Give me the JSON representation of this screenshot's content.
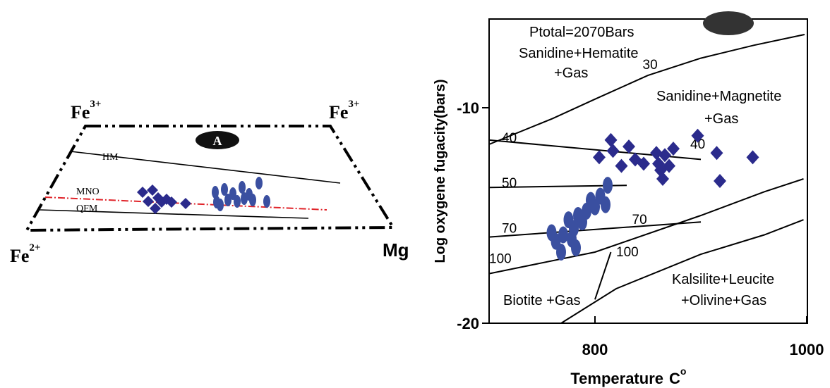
{
  "left_panel": {
    "label_a": "A",
    "vertex_top_left": {
      "base": "Fe",
      "sup": "3+"
    },
    "vertex_top_right": {
      "base": "Fe",
      "sup": "3+"
    },
    "vertex_bottom_left": {
      "base": "Fe",
      "sup": "2+"
    },
    "vertex_bottom_right": "Mg",
    "buffer_labels": {
      "hm": "HM",
      "mno": "MNO",
      "qfm": "QFM"
    },
    "colors": {
      "buffer_mno": "#e0242a",
      "marker": "#2b2b8c",
      "marker_ellipse": "#3a4fa0"
    }
  },
  "chart_data": {
    "type": "scatter",
    "title": "",
    "xlabel": "Temperature",
    "xlabel_unit": {
      "base": "C",
      "sup": "o"
    },
    "ylabel": "Log oxygene fugacity(bars)",
    "xlim": [
      700,
      1000
    ],
    "ylim": [
      -20,
      -6
    ],
    "x_ticks": [
      800,
      1000
    ],
    "y_ticks": [
      -10,
      -20
    ],
    "grid": false,
    "annotations": {
      "ptotal": "Ptotal=2070Bars",
      "field_sanidine_hematite": [
        "Sanidine+Hematite",
        "+Gas"
      ],
      "field_sanidine_magnetite": [
        "Sanidine+Magnetite",
        "+Gas"
      ],
      "field_biotite": "Biotite +Gas",
      "field_kalsilite": [
        "Kalsilite+Leucite",
        "+Olivine+Gas"
      ]
    },
    "buffer_curves": [
      {
        "name": "HM",
        "points": [
          [
            700,
            -11.7
          ],
          [
            760,
            -10.5
          ],
          [
            800,
            -9.6
          ],
          [
            850,
            -8.5
          ],
          [
            900,
            -7.7
          ],
          [
            950,
            -7.1
          ],
          [
            998,
            -6.6
          ]
        ]
      },
      {
        "name": "biotite upper",
        "points": [
          [
            700,
            -17.7
          ],
          [
            800,
            -16.7
          ],
          [
            900,
            -15.0
          ],
          [
            960,
            -13.9
          ],
          [
            997,
            -13.3
          ]
        ]
      },
      {
        "name": "kalsilite",
        "points": [
          [
            768,
            -20.0
          ],
          [
            820,
            -18.4
          ],
          [
            900,
            -16.8
          ],
          [
            960,
            -15.9
          ],
          [
            997,
            -15.2
          ]
        ]
      },
      {
        "name": "biotite lower",
        "points": [
          [
            800,
            -18.9
          ],
          [
            815,
            -16.7
          ]
        ]
      }
    ],
    "isopleths": [
      {
        "label": "40",
        "points": [
          [
            700,
            -11.5
          ],
          [
            900,
            -12.4
          ]
        ]
      },
      {
        "label": "50",
        "points": [
          [
            700,
            -13.7
          ],
          [
            830,
            -13.6
          ]
        ]
      },
      {
        "label": "70",
        "points": [
          [
            700,
            -16.0
          ],
          [
            900,
            -15.3
          ]
        ]
      }
    ],
    "isopleth_labels": [
      {
        "text": "30",
        "x": 845,
        "y": -8.2
      },
      {
        "text": "40",
        "x": 712,
        "y": -11.6
      },
      {
        "text": "40",
        "x": 890,
        "y": -11.9
      },
      {
        "text": "50",
        "x": 712,
        "y": -13.7
      },
      {
        "text": "70",
        "x": 712,
        "y": -15.8
      },
      {
        "text": "70",
        "x": 835,
        "y": -15.4
      },
      {
        "text": "100",
        "x": 700,
        "y": -17.2
      },
      {
        "text": "100",
        "x": 820,
        "y": -16.9
      }
    ],
    "series": [
      {
        "marker": "diamond",
        "points": [
          [
            804,
            -12.3
          ],
          [
            815,
            -11.5
          ],
          [
            817,
            -12.0
          ],
          [
            825,
            -12.7
          ],
          [
            832,
            -11.8
          ],
          [
            838,
            -12.4
          ],
          [
            846,
            -12.6
          ],
          [
            858,
            -12.1
          ],
          [
            860,
            -12.6
          ],
          [
            862,
            -12.9
          ],
          [
            864,
            -13.3
          ],
          [
            866,
            -12.2
          ],
          [
            870,
            -12.7
          ],
          [
            874,
            -11.9
          ],
          [
            897,
            -11.3
          ],
          [
            915,
            -12.1
          ],
          [
            918,
            -13.4
          ],
          [
            949,
            -12.3
          ]
        ]
      },
      {
        "marker": "ellipse",
        "points": [
          [
            759,
            -15.8
          ],
          [
            763,
            -16.2
          ],
          [
            768,
            -16.7
          ],
          [
            770,
            -15.9
          ],
          [
            775,
            -15.2
          ],
          [
            778,
            -16.1
          ],
          [
            780,
            -15.6
          ],
          [
            782,
            -16.5
          ],
          [
            784,
            -15.0
          ],
          [
            788,
            -15.3
          ],
          [
            792,
            -14.8
          ],
          [
            796,
            -14.3
          ],
          [
            800,
            -14.6
          ],
          [
            805,
            -14.1
          ],
          [
            810,
            -14.5
          ],
          [
            812,
            -13.6
          ]
        ]
      }
    ]
  }
}
